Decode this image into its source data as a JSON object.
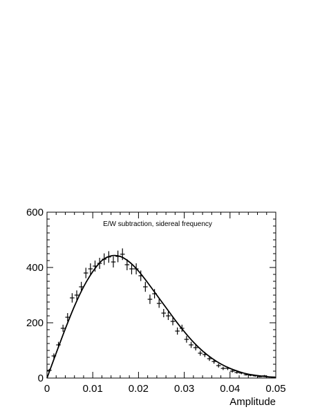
{
  "chart_data": {
    "type": "scatter",
    "annotation": "E/W subtraction, sidereal frequency",
    "xlabel": "Amplitude",
    "ylabel": "",
    "xlim": [
      0,
      0.05
    ],
    "ylim": [
      0,
      600
    ],
    "x_ticks": [
      "0",
      "0.01",
      "0.02",
      "0.03",
      "0.04",
      "0.05"
    ],
    "y_ticks": [
      "0",
      "200",
      "400",
      "600"
    ],
    "grid": false,
    "legend": "none",
    "colors": {
      "data": "#000000",
      "fit": "#000000",
      "frame": "#000000"
    },
    "series": [
      {
        "kind": "points_with_error_bars",
        "x_halfwidth": 0.0005,
        "x": [
          0.0005,
          0.0015,
          0.0025,
          0.0035,
          0.0045,
          0.0055,
          0.0065,
          0.0075,
          0.0085,
          0.0095,
          0.0105,
          0.0115,
          0.0125,
          0.0135,
          0.0145,
          0.0155,
          0.0165,
          0.0175,
          0.0185,
          0.0195,
          0.0205,
          0.0215,
          0.0225,
          0.0235,
          0.0245,
          0.0255,
          0.0265,
          0.0275,
          0.0285,
          0.0295,
          0.0305,
          0.0315,
          0.0325,
          0.0335,
          0.0345,
          0.0355,
          0.0365,
          0.0375,
          0.0385,
          0.0395,
          0.0405,
          0.0415,
          0.0425,
          0.0435,
          0.0445,
          0.0455,
          0.0465,
          0.0475,
          0.0485,
          0.0495
        ],
        "y": [
          28,
          80,
          120,
          180,
          220,
          290,
          300,
          330,
          380,
          395,
          405,
          415,
          430,
          438,
          420,
          440,
          448,
          410,
          395,
          395,
          370,
          330,
          285,
          305,
          270,
          235,
          225,
          205,
          170,
          180,
          140,
          120,
          110,
          90,
          85,
          70,
          60,
          45,
          35,
          35,
          25,
          20,
          18,
          12,
          10,
          8,
          5,
          8,
          4,
          3
        ],
        "y_err": [
          5,
          9,
          11,
          13,
          15,
          17,
          17,
          18,
          19,
          20,
          20,
          20,
          21,
          21,
          20,
          21,
          21,
          20,
          20,
          20,
          19,
          18,
          17,
          17,
          16,
          15,
          15,
          14,
          13,
          13,
          12,
          11,
          10,
          9,
          9,
          8,
          8,
          7,
          6,
          6,
          5,
          4,
          4,
          3,
          3,
          3,
          2,
          3,
          2,
          2
        ]
      },
      {
        "kind": "fit_curve",
        "x": [
          0,
          0.002,
          0.004,
          0.006,
          0.008,
          0.01,
          0.012,
          0.014,
          0.016,
          0.018,
          0.02,
          0.022,
          0.024,
          0.026,
          0.028,
          0.03,
          0.032,
          0.034,
          0.036,
          0.038,
          0.04,
          0.042,
          0.044,
          0.046,
          0.048,
          0.05
        ],
        "y": [
          0,
          90,
          178,
          260,
          330,
          385,
          425,
          442,
          440,
          420,
          387,
          345,
          300,
          255,
          210,
          168,
          130,
          98,
          72,
          51,
          35,
          23,
          14,
          9,
          5,
          3
        ]
      }
    ]
  }
}
